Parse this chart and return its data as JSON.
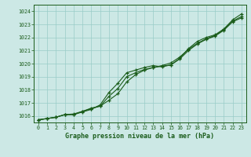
{
  "title": "Graphe pression niveau de la mer (hPa)",
  "x_labels": [
    "0",
    "1",
    "2",
    "3",
    "4",
    "5",
    "6",
    "7",
    "8",
    "9",
    "10",
    "11",
    "12",
    "13",
    "14",
    "15",
    "16",
    "17",
    "18",
    "19",
    "20",
    "21",
    "22",
    "23"
  ],
  "ylim": [
    1015.5,
    1024.5
  ],
  "xlim": [
    -0.5,
    23.5
  ],
  "yticks": [
    1016,
    1017,
    1018,
    1019,
    1020,
    1021,
    1022,
    1023,
    1024
  ],
  "background_color": "#cce8e5",
  "grid_color": "#99ccc8",
  "line_color": "#1a5c1a",
  "line1": [
    1015.7,
    1015.8,
    1015.9,
    1016.1,
    1016.15,
    1016.35,
    1016.55,
    1016.75,
    1017.5,
    1018.1,
    1019.0,
    1019.3,
    1019.55,
    1019.7,
    1019.85,
    1020.05,
    1020.5,
    1021.1,
    1021.55,
    1021.9,
    1022.15,
    1022.6,
    1023.25,
    1023.6
  ],
  "line2": [
    1015.7,
    1015.8,
    1015.9,
    1016.1,
    1016.1,
    1016.3,
    1016.5,
    1016.85,
    1017.8,
    1018.5,
    1019.3,
    1019.5,
    1019.7,
    1019.85,
    1019.75,
    1019.9,
    1020.4,
    1021.15,
    1021.7,
    1022.0,
    1022.2,
    1022.65,
    1023.35,
    1023.8
  ],
  "line3": [
    1015.7,
    1015.8,
    1015.9,
    1016.1,
    1016.1,
    1016.35,
    1016.6,
    1016.75,
    1017.2,
    1017.7,
    1018.6,
    1019.15,
    1019.5,
    1019.7,
    1019.8,
    1019.9,
    1020.35,
    1021.0,
    1021.5,
    1021.85,
    1022.1,
    1022.55,
    1023.2,
    1023.5
  ]
}
